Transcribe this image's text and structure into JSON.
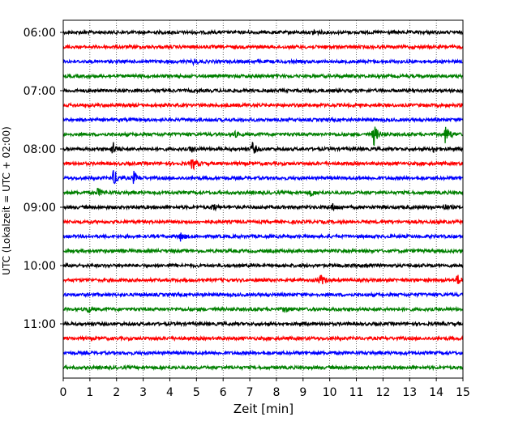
{
  "chart_data": {
    "type": "line",
    "title": "",
    "xlabel": "Zeit  [min]",
    "ylabel": "UTC (Lokalzeit = UTC + 02:00)",
    "xlim": [
      0,
      15
    ],
    "x_ticks": [
      "0",
      "1",
      "2",
      "3",
      "4",
      "5",
      "6",
      "7",
      "8",
      "9",
      "10",
      "11",
      "12",
      "13",
      "14",
      "15"
    ],
    "y_ticks": [
      "06:00",
      "07:00",
      "08:00",
      "09:00",
      "10:00",
      "11:00"
    ],
    "grid_x": true,
    "grid_y": false,
    "trace_colors": [
      "#000000",
      "#ff0000",
      "#0000ff",
      "#008000"
    ],
    "traces": [
      {
        "start": "06:00",
        "events": [
          [
            9.4,
            0.5
          ]
        ]
      },
      {
        "start": "06:15",
        "events": []
      },
      {
        "start": "06:30",
        "events": [
          [
            4.9,
            0.4
          ]
        ]
      },
      {
        "start": "06:45",
        "events": []
      },
      {
        "start": "07:00",
        "events": []
      },
      {
        "start": "07:15",
        "events": []
      },
      {
        "start": "07:30",
        "events": []
      },
      {
        "start": "07:45",
        "events": [
          [
            11.65,
            1.8
          ],
          [
            14.35,
            1.6
          ],
          [
            6.4,
            0.5
          ]
        ]
      },
      {
        "start": "08:00",
        "events": [
          [
            1.85,
            1.2
          ],
          [
            7.1,
            1.0
          ],
          [
            4.8,
            0.5
          ],
          [
            13.9,
            0.4
          ]
        ]
      },
      {
        "start": "08:15",
        "events": [
          [
            4.85,
            1.1
          ]
        ]
      },
      {
        "start": "08:30",
        "events": [
          [
            1.9,
            1.4
          ],
          [
            2.65,
            1.0
          ]
        ]
      },
      {
        "start": "08:45",
        "events": [
          [
            1.3,
            0.7
          ],
          [
            9.3,
            0.5
          ]
        ]
      },
      {
        "start": "09:00",
        "events": [
          [
            5.6,
            0.6
          ],
          [
            10.1,
            0.5
          ],
          [
            14.3,
            0.4
          ]
        ]
      },
      {
        "start": "09:15",
        "events": []
      },
      {
        "start": "09:30",
        "events": [
          [
            4.4,
            0.6
          ]
        ]
      },
      {
        "start": "09:45",
        "events": []
      },
      {
        "start": "10:00",
        "events": [
          [
            11.3,
            0.4
          ]
        ]
      },
      {
        "start": "10:15",
        "events": [
          [
            9.65,
            0.9
          ],
          [
            14.8,
            0.8
          ]
        ]
      },
      {
        "start": "10:30",
        "events": []
      },
      {
        "start": "10:45",
        "events": [
          [
            0.9,
            0.5
          ],
          [
            8.3,
            0.5
          ]
        ]
      },
      {
        "start": "11:00",
        "events": []
      },
      {
        "start": "11:15",
        "events": []
      },
      {
        "start": "11:30",
        "events": []
      },
      {
        "start": "11:45",
        "events": []
      }
    ]
  }
}
